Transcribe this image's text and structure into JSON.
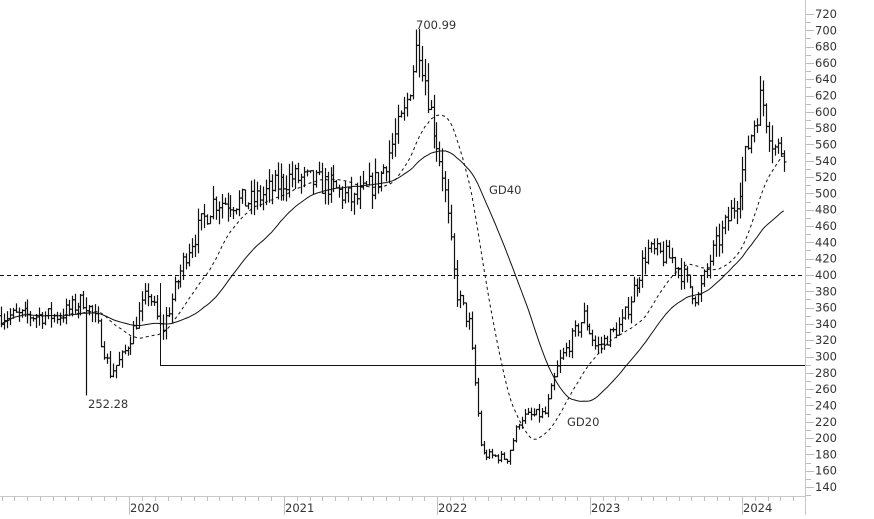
{
  "chart_data": {
    "type": "ohlc",
    "title": "",
    "xlabel": "",
    "ylabel": "",
    "ylim": [
      130,
      730
    ],
    "y_ticks": [
      140,
      160,
      180,
      200,
      220,
      240,
      260,
      280,
      300,
      320,
      340,
      360,
      380,
      400,
      420,
      440,
      460,
      480,
      500,
      520,
      540,
      560,
      580,
      600,
      620,
      640,
      660,
      680,
      700,
      720
    ],
    "x_tick_labels": [
      "2020",
      "2021",
      "2022",
      "2023",
      "2024"
    ],
    "grid": false,
    "legend": null,
    "frequency": "weekly",
    "annotations": [
      {
        "text": "700.99",
        "type": "high-marker",
        "price": 700.99
      },
      {
        "text": "252.28",
        "type": "low-marker",
        "price": 252.28
      },
      {
        "text": "GD40",
        "type": "series-label"
      },
      {
        "text": "GD20",
        "type": "series-label"
      }
    ],
    "horizontal_lines": [
      {
        "price": 400,
        "style": "dashed"
      },
      {
        "price": 290,
        "style": "solid",
        "start": "2020-02"
      }
    ],
    "series": [
      {
        "name": "Price",
        "style": "ohlc-bars"
      },
      {
        "name": "GD20",
        "style": "dashed",
        "description": "20-week moving average"
      },
      {
        "name": "GD40",
        "style": "solid",
        "description": "40-week moving average"
      }
    ],
    "close_keypoints": [
      {
        "date": "2019-07",
        "close": 350
      },
      {
        "date": "2019-09",
        "close": 370
      },
      {
        "date": "2019-10",
        "close": 340
      },
      {
        "date": "2019-11",
        "close": 280
      },
      {
        "date": "2019-12",
        "close": 300
      },
      {
        "date": "2020-02",
        "close": 380
      },
      {
        "date": "2020-03",
        "close": 330
      },
      {
        "date": "2020-05",
        "close": 430
      },
      {
        "date": "2020-07",
        "close": 490
      },
      {
        "date": "2020-10",
        "close": 490
      },
      {
        "date": "2021-01",
        "close": 520
      },
      {
        "date": "2021-04",
        "close": 510
      },
      {
        "date": "2021-06",
        "close": 490
      },
      {
        "date": "2021-08",
        "close": 520
      },
      {
        "date": "2021-10",
        "close": 600
      },
      {
        "date": "2021-11",
        "close": 690
      },
      {
        "date": "2021-12",
        "close": 600
      },
      {
        "date": "2022-01",
        "close": 520
      },
      {
        "date": "2022-02",
        "close": 380
      },
      {
        "date": "2022-03",
        "close": 340
      },
      {
        "date": "2022-04",
        "close": 180
      },
      {
        "date": "2022-06",
        "close": 175
      },
      {
        "date": "2022-07",
        "close": 225
      },
      {
        "date": "2022-09",
        "close": 230
      },
      {
        "date": "2022-10",
        "close": 290
      },
      {
        "date": "2022-12",
        "close": 350
      },
      {
        "date": "2023-01",
        "close": 310
      },
      {
        "date": "2023-03",
        "close": 340
      },
      {
        "date": "2023-05",
        "close": 430
      },
      {
        "date": "2023-07",
        "close": 420
      },
      {
        "date": "2023-09",
        "close": 370
      },
      {
        "date": "2023-10",
        "close": 420
      },
      {
        "date": "2023-12",
        "close": 490
      },
      {
        "date": "2024-01",
        "close": 560
      },
      {
        "date": "2024-02",
        "close": 620
      },
      {
        "date": "2024-03",
        "close": 555
      }
    ]
  },
  "axis": {
    "y_labels": [
      "720",
      "700",
      "680",
      "660",
      "640",
      "620",
      "600",
      "580",
      "560",
      "540",
      "520",
      "500",
      "480",
      "460",
      "440",
      "420",
      "400",
      "380",
      "360",
      "340",
      "320",
      "300",
      "280",
      "260",
      "240",
      "220",
      "200",
      "180",
      "160",
      "140"
    ],
    "x_labels": [
      "2020",
      "2021",
      "2022",
      "2023",
      "2024"
    ]
  },
  "labels": {
    "high": "700.99",
    "low": "252.28",
    "gd40": "GD40",
    "gd20": "GD20"
  }
}
